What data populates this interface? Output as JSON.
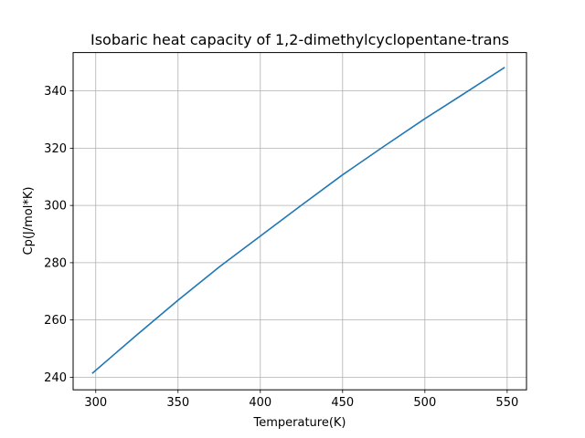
{
  "chart_data": {
    "type": "line",
    "title": "Isobaric heat capacity of 1,2-dimethylcyclopentane-trans",
    "xlabel": "Temperature(K)",
    "ylabel": "Cp(J/mol*K)",
    "xlim": [
      286.25,
      561.75
    ],
    "ylim": [
      235.6,
      353.4
    ],
    "xticks": [
      300,
      350,
      400,
      450,
      500,
      550
    ],
    "yticks": [
      240,
      260,
      280,
      300,
      320,
      340
    ],
    "grid": true,
    "series_color": "#1f77b4",
    "grid_color": "#b0b0b0",
    "series": [
      {
        "x": [
          298.15,
          325,
          350,
          375,
          400,
          425,
          450,
          475,
          500,
          525,
          548.15
        ],
        "values": [
          241.5,
          254.8,
          266.9,
          278.5,
          289.3,
          300.1,
          310.7,
          320.6,
          330.3,
          339.5,
          348.1
        ]
      }
    ]
  }
}
